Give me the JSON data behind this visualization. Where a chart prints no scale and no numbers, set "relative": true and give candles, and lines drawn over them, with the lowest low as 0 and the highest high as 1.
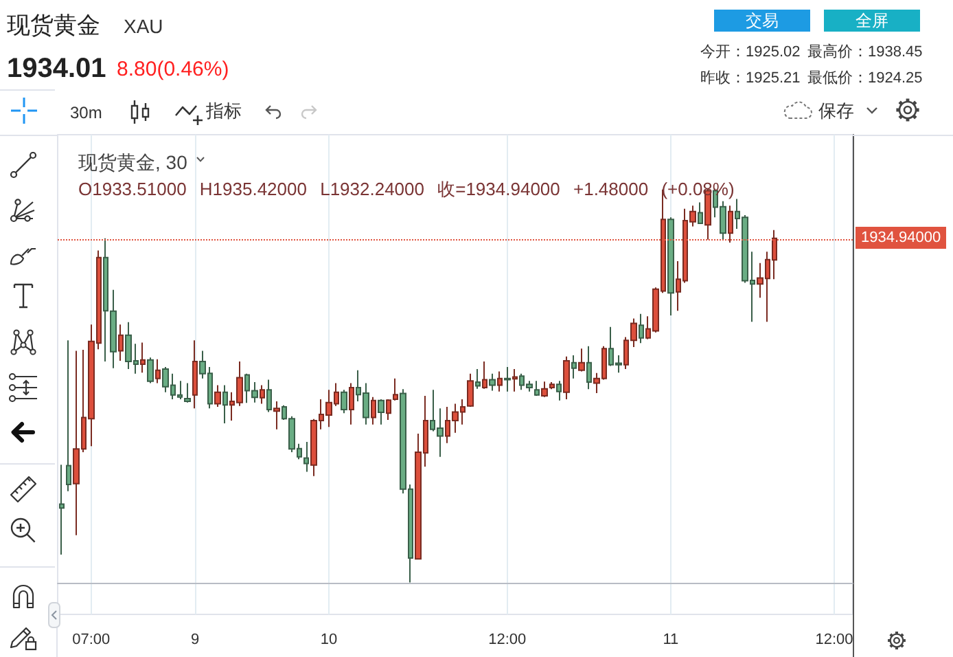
{
  "chart_data": {
    "type": "candlestick",
    "relative": true,
    "grid": "x",
    "title": "现货黄金",
    "subtitle": "XAU",
    "annotations": [
      "1934.01",
      "8.80(0.46%)",
      "今开：1925.02",
      "最高价：1938.45",
      "昨收：1925.21",
      "最低价：1924.25",
      "交易",
      "全屏",
      "30m",
      "指标",
      "保存",
      "现货黄金, 30",
      "O1933.51000 H1935.42000 L1932.24000 收=1934.94000 +1.48000 (+0.08%)",
      "1934.94000"
    ],
    "categories": [
      null,
      null,
      null,
      null,
      "07:00",
      null,
      null,
      null,
      null,
      null,
      null,
      null,
      null,
      null,
      null,
      null,
      null,
      null,
      "9",
      null,
      null,
      null,
      null,
      null,
      null,
      null,
      null,
      null,
      null,
      null,
      null,
      null,
      null,
      null,
      null,
      null,
      "10",
      null,
      null,
      null,
      null,
      null,
      null,
      null,
      null,
      null,
      null,
      null,
      null,
      null,
      null,
      null,
      null,
      null,
      null,
      null,
      null,
      null,
      null,
      null,
      "12:00",
      null,
      null,
      null,
      null,
      null,
      null,
      null,
      null,
      null,
      null,
      null,
      null,
      null,
      null,
      null,
      null,
      null,
      null,
      null,
      null,
      null,
      "11",
      null,
      null,
      null,
      null,
      null,
      null,
      null,
      null,
      null,
      null,
      null,
      null,
      null,
      null,
      null,
      null,
      null,
      null,
      null,
      null,
      null,
      "12:00",
      null,
      null
    ],
    "ohlc": [
      [
        0.199,
        0.299,
        0.071,
        0.189
      ],
      [
        0.297,
        0.615,
        0.232,
        0.249
      ],
      [
        0.251,
        0.588,
        0.12,
        0.339
      ],
      [
        0.339,
        0.591,
        0.331,
        0.419
      ],
      [
        0.416,
        0.655,
        0.346,
        0.612
      ],
      [
        0.608,
        0.843,
        0.592,
        0.825
      ],
      [
        0.825,
        0.874,
        0.561,
        0.69
      ],
      [
        0.689,
        0.743,
        0.544,
        0.586
      ],
      [
        0.588,
        0.655,
        0.563,
        0.628
      ],
      [
        0.628,
        0.661,
        0.542,
        0.561
      ],
      [
        0.563,
        0.606,
        0.53,
        0.554
      ],
      [
        0.554,
        0.609,
        0.533,
        0.565
      ],
      [
        0.565,
        0.571,
        0.506,
        0.511
      ],
      [
        0.518,
        0.567,
        0.506,
        0.539
      ],
      [
        0.542,
        0.547,
        0.483,
        0.497
      ],
      [
        0.501,
        0.53,
        0.465,
        0.476
      ],
      [
        0.476,
        0.512,
        0.465,
        0.471
      ],
      [
        0.467,
        0.506,
        0.457,
        0.46
      ],
      [
        0.476,
        0.615,
        0.442,
        0.561
      ],
      [
        0.561,
        0.588,
        0.518,
        0.53
      ],
      [
        0.531,
        0.547,
        0.442,
        0.454
      ],
      [
        0.454,
        0.501,
        0.446,
        0.483
      ],
      [
        0.483,
        0.501,
        0.404,
        0.451
      ],
      [
        0.451,
        0.483,
        0.411,
        0.46
      ],
      [
        0.457,
        0.561,
        0.448,
        0.52
      ],
      [
        0.527,
        0.53,
        0.456,
        0.487
      ],
      [
        0.487,
        0.509,
        0.457,
        0.47
      ],
      [
        0.469,
        0.501,
        0.454,
        0.489
      ],
      [
        0.489,
        0.515,
        0.433,
        0.439
      ],
      [
        0.435,
        0.46,
        0.389,
        0.442
      ],
      [
        0.446,
        0.45,
        0.413,
        0.416
      ],
      [
        0.416,
        0.422,
        0.331,
        0.339
      ],
      [
        0.34,
        0.352,
        0.313,
        0.319
      ],
      [
        0.316,
        0.357,
        0.281,
        0.302
      ],
      [
        0.298,
        0.415,
        0.27,
        0.411
      ],
      [
        0.411,
        0.465,
        0.389,
        0.427
      ],
      [
        0.425,
        0.489,
        0.395,
        0.457
      ],
      [
        0.454,
        0.506,
        0.448,
        0.483
      ],
      [
        0.483,
        0.489,
        0.43,
        0.439
      ],
      [
        0.439,
        0.506,
        0.401,
        0.495
      ],
      [
        0.495,
        0.539,
        0.46,
        0.477
      ],
      [
        0.481,
        0.506,
        0.401,
        0.419
      ],
      [
        0.419,
        0.471,
        0.401,
        0.462
      ],
      [
        0.462,
        0.465,
        0.401,
        0.432
      ],
      [
        0.43,
        0.465,
        0.413,
        0.463
      ],
      [
        0.465,
        0.518,
        0.462,
        0.477
      ],
      [
        0.48,
        0.491,
        0.226,
        0.237
      ],
      [
        0.237,
        0.249,
        0,
        0.062
      ],
      [
        0.06,
        0.378,
        0.06,
        0.331
      ],
      [
        0.329,
        0.474,
        0.294,
        0.411
      ],
      [
        0.411,
        0.489,
        0.384,
        0.389
      ],
      [
        0.392,
        0.442,
        0.319,
        0.372
      ],
      [
        0.372,
        0.446,
        0.354,
        0.411
      ],
      [
        0.411,
        0.454,
        0.38,
        0.433
      ],
      [
        0.433,
        0.465,
        0.401,
        0.446
      ],
      [
        0.448,
        0.53,
        0.446,
        0.512
      ],
      [
        0.509,
        0.542,
        0.492,
        0.499
      ],
      [
        0.495,
        0.561,
        0.492,
        0.515
      ],
      [
        0.515,
        0.53,
        0.487,
        0.501
      ],
      [
        0.501,
        0.536,
        0.485,
        0.518
      ],
      [
        0.518,
        0.547,
        0.485,
        0.515
      ],
      [
        0.517,
        0.542,
        0.485,
        0.522
      ],
      [
        0.524,
        0.53,
        0.489,
        0.501
      ],
      [
        0.503,
        0.512,
        0.485,
        0.495
      ],
      [
        0.489,
        0.512,
        0.474,
        0.476
      ],
      [
        0.474,
        0.51,
        0.471,
        0.492
      ],
      [
        0.495,
        0.509,
        0.491,
        0.503
      ],
      [
        0.503,
        0.512,
        0.462,
        0.485
      ],
      [
        0.483,
        0.574,
        0.465,
        0.563
      ],
      [
        0.558,
        0.577,
        0.518,
        0.544
      ],
      [
        0.539,
        0.594,
        0.536,
        0.558
      ],
      [
        0.558,
        0.6,
        0.491,
        0.509
      ],
      [
        0.506,
        0.532,
        0.481,
        0.518
      ],
      [
        0.518,
        0.6,
        0.515,
        0.594
      ],
      [
        0.594,
        0.649,
        0.55,
        0.553
      ],
      [
        0.557,
        0.577,
        0.533,
        0.553
      ],
      [
        0.553,
        0.623,
        0.542,
        0.615
      ],
      [
        0.615,
        0.67,
        0.598,
        0.658
      ],
      [
        0.653,
        0.682,
        0.608,
        0.621
      ],
      [
        0.621,
        0.676,
        0.618,
        0.644
      ],
      [
        0.639,
        0.749,
        0.635,
        0.745
      ],
      [
        0.74,
        0.998,
        0.735,
        0.922
      ],
      [
        0.922,
        0.927,
        0.678,
        0.735
      ],
      [
        0.738,
        0.816,
        0.69,
        0.77
      ],
      [
        0.766,
        0.949,
        0.761,
        0.919
      ],
      [
        0.916,
        0.957,
        0.904,
        0.942
      ],
      [
        0.939,
        0.965,
        0.912,
        0.912
      ],
      [
        0.908,
        1,
        0.871,
        0.995
      ],
      [
        0.995,
        1,
        0.927,
        0.953
      ],
      [
        0.954,
        0.968,
        0.871,
        0.887
      ],
      [
        0.887,
        0.957,
        0.863,
        0.942
      ],
      [
        0.942,
        0.974,
        0.898,
        0.924
      ],
      [
        0.927,
        0.933,
        0.761,
        0.766
      ],
      [
        0.767,
        0.84,
        0.662,
        0.758
      ],
      [
        0.758,
        0.811,
        0.723,
        0.773
      ],
      [
        0.772,
        0.84,
        0.662,
        0.82
      ],
      [
        0.819,
        0.895,
        0.77,
        0.874
      ],
      null,
      null,
      null,
      null,
      null,
      null,
      null,
      null,
      null,
      null
    ],
    "colors": [
      "#6aad84",
      "#6aad84",
      "#dd4f3c",
      "#dd4f3c",
      "#dd4f3c",
      "#dd4f3c",
      "#6aad84",
      "#6aad84",
      "#dd4f3c",
      "#6aad84",
      "#6aad84",
      "#dd4f3c",
      "#6aad84",
      "#dd4f3c",
      "#6aad84",
      "#6aad84",
      "#6aad84",
      "#6aad84",
      "#dd4f3c",
      "#6aad84",
      "#6aad84",
      "#dd4f3c",
      "#6aad84",
      "#dd4f3c",
      "#dd4f3c",
      "#6aad84",
      "#6aad84",
      "#dd4f3c",
      "#6aad84",
      "#dd4f3c",
      "#6aad84",
      "#6aad84",
      "#6aad84",
      "#6aad84",
      "#dd4f3c",
      "#dd4f3c",
      "#dd4f3c",
      "#dd4f3c",
      "#6aad84",
      "#dd4f3c",
      "#6aad84",
      "#6aad84",
      "#dd4f3c",
      "#6aad84",
      "#dd4f3c",
      "#dd4f3c",
      "#6aad84",
      "#6aad84",
      "#dd4f3c",
      "#dd4f3c",
      "#6aad84",
      "#6aad84",
      "#dd4f3c",
      "#dd4f3c",
      "#dd4f3c",
      "#dd4f3c",
      "#6aad84",
      "#dd4f3c",
      "#6aad84",
      "#dd4f3c",
      "#6aad84",
      "#dd4f3c",
      "#6aad84",
      "#6aad84",
      "#6aad84",
      "#dd4f3c",
      "#dd4f3c",
      "#6aad84",
      "#dd4f3c",
      "#6aad84",
      "#dd4f3c",
      "#6aad84",
      "#dd4f3c",
      "#dd4f3c",
      "#6aad84",
      "#6aad84",
      "#dd4f3c",
      "#dd4f3c",
      "#6aad84",
      "#dd4f3c",
      "#dd4f3c",
      "#dd4f3c",
      "#6aad84",
      "#dd4f3c",
      "#dd4f3c",
      "#dd4f3c",
      "#6aad84",
      "#dd4f3c",
      "#6aad84",
      "#6aad84",
      "#dd4f3c",
      "#6aad84",
      "#6aad84",
      "#6aad84",
      "#dd4f3c",
      "#dd4f3c",
      "#dd4f3c",
      null,
      null,
      null,
      null,
      null,
      null,
      null,
      null,
      null,
      null
    ],
    "ref_lines": [
      {
        "axis": "y",
        "value": 0.874,
        "color": "#e0533f",
        "line_style": "dotted"
      }
    ]
  }
}
